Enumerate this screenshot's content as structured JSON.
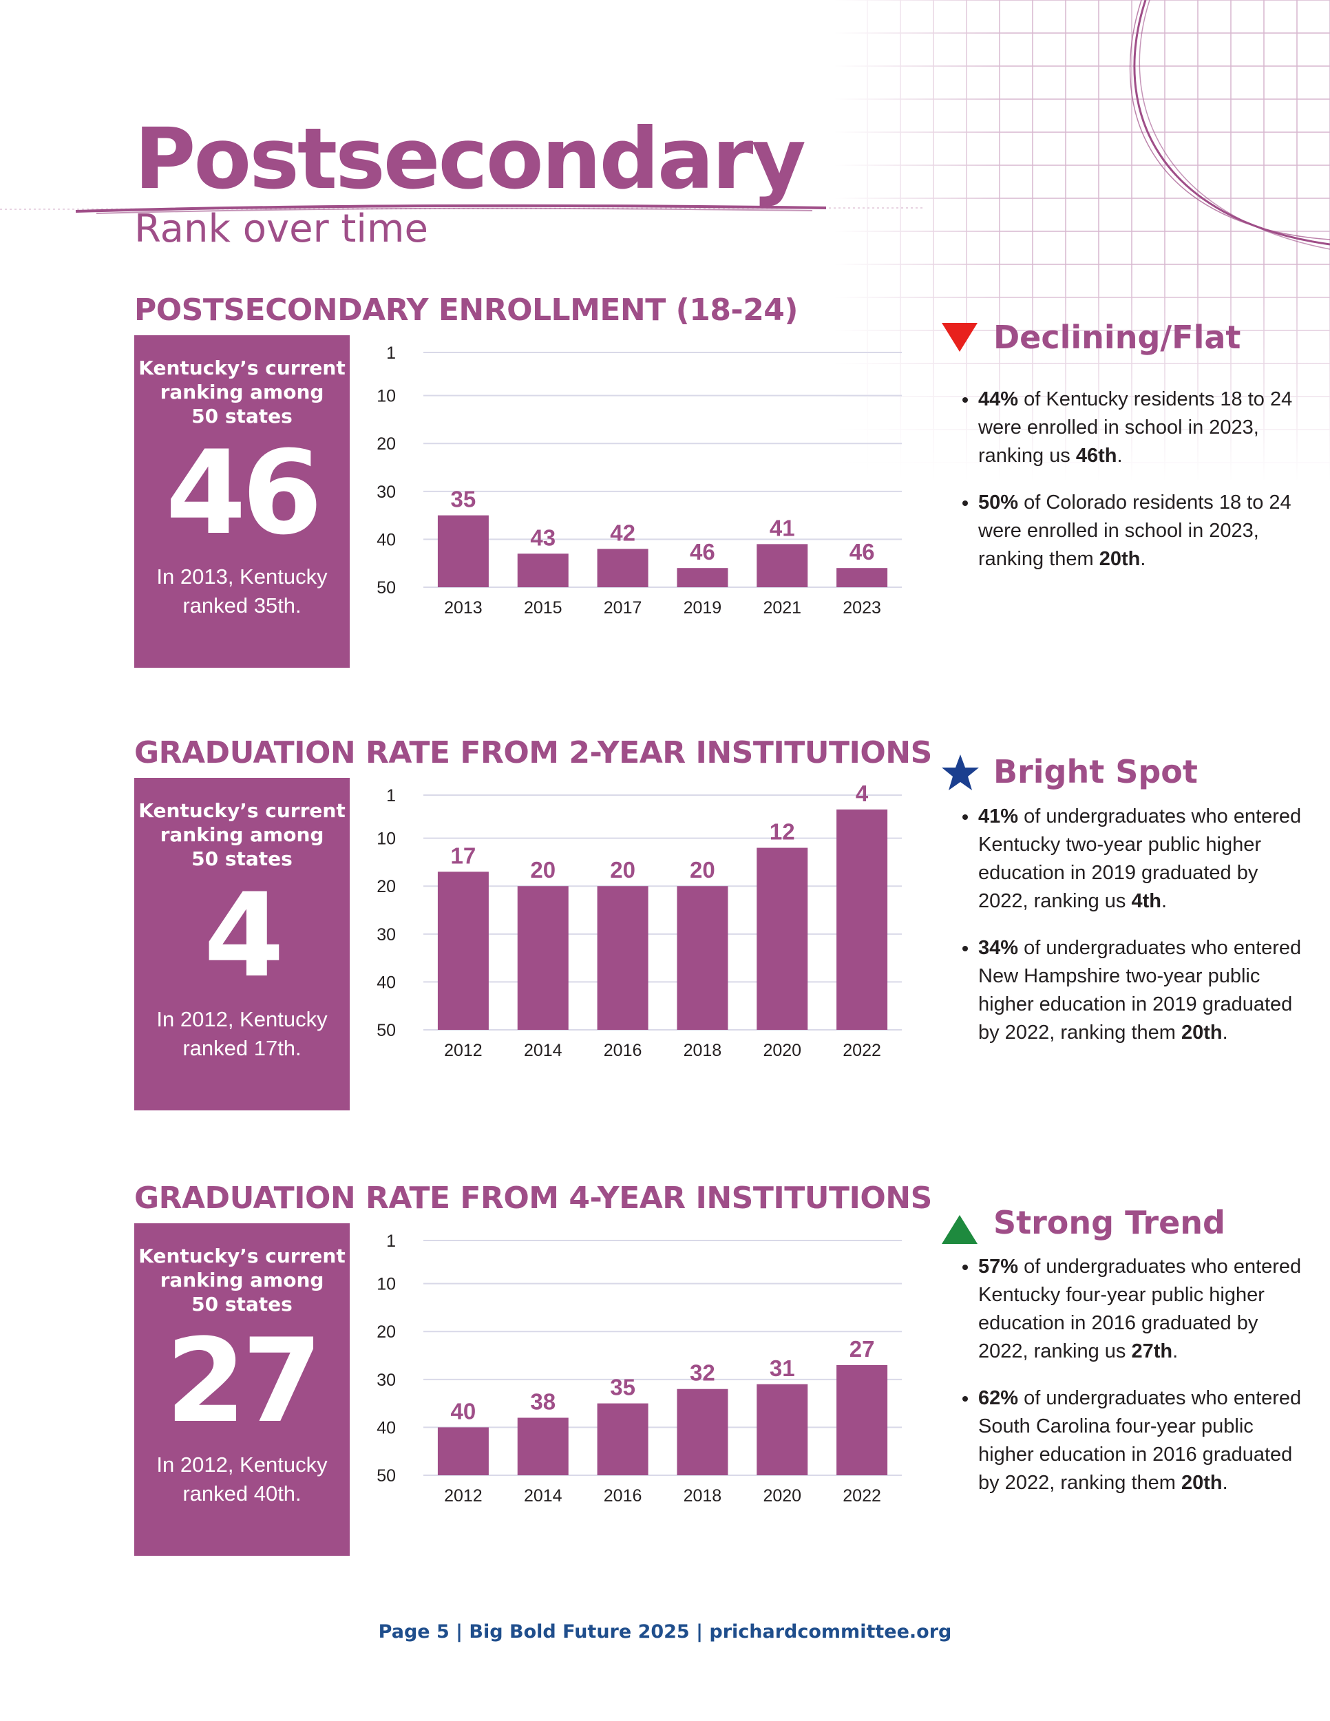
{
  "header": {
    "title": "Postsecondary",
    "subtitle": "Rank over time"
  },
  "colors": {
    "accent": "#9f4e88",
    "grid": "#d9d9e8",
    "footer": "#1f4e8c",
    "decline": "#e8211d",
    "bright": "#1b3f8f",
    "trend": "#1e8a3e"
  },
  "chart_data": [
    {
      "type": "bar",
      "title": "POSTSECONDARY ENROLLMENT (18-24)",
      "categories": [
        "2013",
        "2015",
        "2017",
        "2019",
        "2021",
        "2023"
      ],
      "values": [
        35,
        43,
        42,
        46,
        41,
        46
      ],
      "y_ticks": [
        1,
        10,
        20,
        30,
        40,
        50
      ],
      "ylim": [
        1,
        50
      ],
      "y_inverted": true,
      "grid": true,
      "data_labels": true
    },
    {
      "type": "bar",
      "title": "GRADUATION RATE FROM 2-YEAR INSTITUTIONS",
      "categories": [
        "2012",
        "2014",
        "2016",
        "2018",
        "2020",
        "2022"
      ],
      "values": [
        17,
        20,
        20,
        20,
        12,
        4
      ],
      "y_ticks": [
        1,
        10,
        20,
        30,
        40,
        50
      ],
      "ylim": [
        1,
        50
      ],
      "y_inverted": true,
      "grid": true,
      "data_labels": true
    },
    {
      "type": "bar",
      "title": "GRADUATION RATE FROM 4-YEAR INSTITUTIONS",
      "categories": [
        "2012",
        "2014",
        "2016",
        "2018",
        "2020",
        "2022"
      ],
      "values": [
        40,
        38,
        35,
        32,
        31,
        27
      ],
      "y_ticks": [
        1,
        10,
        20,
        30,
        40,
        50
      ],
      "ylim": [
        1,
        50
      ],
      "y_inverted": true,
      "grid": true,
      "data_labels": true
    }
  ],
  "sections": [
    {
      "heading": "POSTSECONDARY ENROLLMENT (18-24)",
      "card": {
        "label": "Kentucky’s current\nranking among\n50 states",
        "rank": "46",
        "note": "In 2013, Kentucky\nranked 35th."
      },
      "callout": {
        "icon": "red-down-triangle-icon",
        "title": "Declining/Flat",
        "bullets": [
          [
            {
              "t": "44%",
              "b": true
            },
            {
              "t": " of Kentucky residents 18 to 24 were enrolled in school in 2023, ranking us "
            },
            {
              "t": "46th",
              "b": true
            },
            {
              "t": "."
            }
          ],
          [
            {
              "t": "50%",
              "b": true
            },
            {
              "t": " of Colorado residents 18 to 24 were enrolled in school in 2023, ranking them "
            },
            {
              "t": "20th",
              "b": true
            },
            {
              "t": "."
            }
          ]
        ]
      }
    },
    {
      "heading": "GRADUATION RATE FROM 2-YEAR INSTITUTIONS",
      "card": {
        "label": "Kentucky’s current\nranking among\n50 states",
        "rank": "4",
        "note": "In 2012, Kentucky\nranked 17th."
      },
      "callout": {
        "icon": "blue-star-icon",
        "title": "Bright Spot",
        "bullets": [
          [
            {
              "t": "41%",
              "b": true
            },
            {
              "t": " of undergraduates who entered Kentucky two-year public higher education in 2019 graduated by 2022, ranking us "
            },
            {
              "t": "4th",
              "b": true
            },
            {
              "t": "."
            }
          ],
          [
            {
              "t": "34%",
              "b": true
            },
            {
              "t": " of undergraduates who entered New Hampshire two-year public higher education in 2019 graduated by 2022, ranking them "
            },
            {
              "t": "20th",
              "b": true
            },
            {
              "t": "."
            }
          ]
        ]
      }
    },
    {
      "heading": "GRADUATION RATE FROM 4-YEAR INSTITUTIONS",
      "card": {
        "label": "Kentucky’s current\nranking among\n50 states",
        "rank": "27",
        "note": "In 2012, Kentucky\nranked 40th."
      },
      "callout": {
        "icon": "green-up-triangle-icon",
        "title": "Strong Trend",
        "bullets": [
          [
            {
              "t": "57%",
              "b": true
            },
            {
              "t": " of undergraduates who entered Kentucky four-year public higher education in 2016 graduated by 2022, ranking us "
            },
            {
              "t": "27th",
              "b": true
            },
            {
              "t": "."
            }
          ],
          [
            {
              "t": "62%",
              "b": true
            },
            {
              "t": " of undergraduates who entered South Carolina four-year public higher education in 2016 graduated by 2022, ranking them "
            },
            {
              "t": "20th",
              "b": true
            },
            {
              "t": "."
            }
          ]
        ]
      }
    }
  ],
  "footer": {
    "text": "Page 5 | Big Bold Future 2025 | prichardcommittee.org"
  }
}
